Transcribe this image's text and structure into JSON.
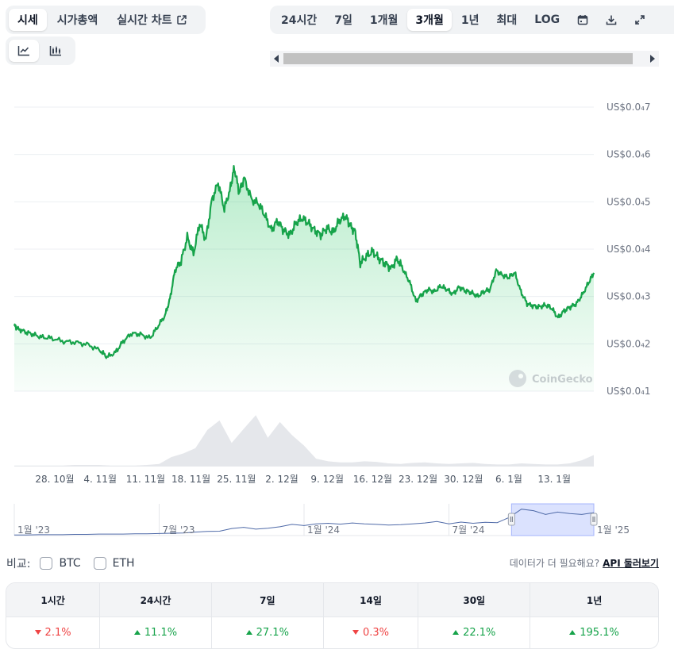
{
  "tabs": [
    {
      "label": "시세",
      "active": true
    },
    {
      "label": "시가총액",
      "active": false
    },
    {
      "label": "실시간 차트",
      "active": false
    }
  ],
  "chart_type_icons": [
    "line-chart-icon",
    "candlestick-chart-icon"
  ],
  "ranges": [
    {
      "label": "24시간",
      "active": false
    },
    {
      "label": "7일",
      "active": false
    },
    {
      "label": "1개월",
      "active": false
    },
    {
      "label": "3개월",
      "active": true
    },
    {
      "label": "1년",
      "active": false
    },
    {
      "label": "최대",
      "active": false
    },
    {
      "label": "LOG",
      "active": false
    }
  ],
  "toolbar_icons": [
    "calendar-icon",
    "download-icon",
    "expand-icon"
  ],
  "watermark": "CoinGecko",
  "chart_data": {
    "type": "area",
    "y_ticks": [
      {
        "label": "US$0.0₄7",
        "value": 7
      },
      {
        "label": "US$0.0₄6",
        "value": 6
      },
      {
        "label": "US$0.0₄5",
        "value": 5
      },
      {
        "label": "US$0.0₄4",
        "value": 4
      },
      {
        "label": "US$0.0₄3",
        "value": 3
      },
      {
        "label": "US$0.0₄2",
        "value": 2
      },
      {
        "label": "US$0.0₄1",
        "value": 1
      }
    ],
    "ylim": [
      1,
      7
    ],
    "x_ticks": [
      "28. 10월",
      "4. 11월",
      "11. 11월",
      "18. 11월",
      "25. 11월",
      "2. 12월",
      "9. 12월",
      "16. 12월",
      "23. 12월",
      "30. 12월",
      "6. 1월",
      "13. 1월"
    ],
    "price_series": [
      {
        "x": 0,
        "y": 2.38
      },
      {
        "x": 0.3,
        "y": 2.32
      },
      {
        "x": 0.9,
        "y": 2.25
      },
      {
        "x": 1.5,
        "y": 2.2
      },
      {
        "x": 2.2,
        "y": 2.14
      },
      {
        "x": 3.0,
        "y": 2.12
      },
      {
        "x": 4.0,
        "y": 2.05
      },
      {
        "x": 5.0,
        "y": 2.03
      },
      {
        "x": 6.0,
        "y": 1.98
      },
      {
        "x": 7.0,
        "y": 1.85
      },
      {
        "x": 7.5,
        "y": 1.72
      },
      {
        "x": 8.2,
        "y": 1.82
      },
      {
        "x": 8.8,
        "y": 2.05
      },
      {
        "x": 9.5,
        "y": 2.22
      },
      {
        "x": 10.2,
        "y": 2.2
      },
      {
        "x": 11.0,
        "y": 2.12
      },
      {
        "x": 11.6,
        "y": 2.36
      },
      {
        "x": 12.2,
        "y": 2.6
      },
      {
        "x": 12.6,
        "y": 2.95
      },
      {
        "x": 13.0,
        "y": 3.55
      },
      {
        "x": 13.5,
        "y": 3.75
      },
      {
        "x": 14.0,
        "y": 4.25
      },
      {
        "x": 14.5,
        "y": 3.9
      },
      {
        "x": 15.0,
        "y": 4.55
      },
      {
        "x": 15.5,
        "y": 4.2
      },
      {
        "x": 16.0,
        "y": 5.05
      },
      {
        "x": 16.5,
        "y": 5.4
      },
      {
        "x": 17.0,
        "y": 4.85
      },
      {
        "x": 17.5,
        "y": 5.3
      },
      {
        "x": 17.8,
        "y": 5.72
      },
      {
        "x": 18.2,
        "y": 5.2
      },
      {
        "x": 18.6,
        "y": 5.5
      },
      {
        "x": 19.2,
        "y": 5.05
      },
      {
        "x": 19.8,
        "y": 4.95
      },
      {
        "x": 20.3,
        "y": 4.7
      },
      {
        "x": 20.8,
        "y": 4.4
      },
      {
        "x": 21.3,
        "y": 4.6
      },
      {
        "x": 21.8,
        "y": 4.4
      },
      {
        "x": 22.3,
        "y": 4.3
      },
      {
        "x": 22.8,
        "y": 4.55
      },
      {
        "x": 23.3,
        "y": 4.65
      },
      {
        "x": 23.8,
        "y": 4.55
      },
      {
        "x": 24.3,
        "y": 4.4
      },
      {
        "x": 24.8,
        "y": 4.3
      },
      {
        "x": 25.3,
        "y": 4.45
      },
      {
        "x": 25.8,
        "y": 4.35
      },
      {
        "x": 26.3,
        "y": 4.6
      },
      {
        "x": 26.8,
        "y": 4.7
      },
      {
        "x": 27.2,
        "y": 4.5
      },
      {
        "x": 27.6,
        "y": 4.35
      },
      {
        "x": 28.0,
        "y": 3.7
      },
      {
        "x": 28.5,
        "y": 3.85
      },
      {
        "x": 29.0,
        "y": 3.95
      },
      {
        "x": 29.5,
        "y": 3.8
      },
      {
        "x": 30.0,
        "y": 3.7
      },
      {
        "x": 30.5,
        "y": 3.6
      },
      {
        "x": 31.0,
        "y": 3.8
      },
      {
        "x": 31.5,
        "y": 3.55
      },
      {
        "x": 32.0,
        "y": 3.3
      },
      {
        "x": 32.5,
        "y": 2.9
      },
      {
        "x": 33.0,
        "y": 3.05
      },
      {
        "x": 33.5,
        "y": 3.15
      },
      {
        "x": 34.0,
        "y": 3.1
      },
      {
        "x": 34.5,
        "y": 3.22
      },
      {
        "x": 35.0,
        "y": 3.15
      },
      {
        "x": 35.5,
        "y": 3.05
      },
      {
        "x": 36.0,
        "y": 3.2
      },
      {
        "x": 36.5,
        "y": 3.12
      },
      {
        "x": 37.0,
        "y": 3.08
      },
      {
        "x": 37.5,
        "y": 3.0
      },
      {
        "x": 38.0,
        "y": 3.1
      },
      {
        "x": 38.5,
        "y": 3.15
      },
      {
        "x": 39.0,
        "y": 3.55
      },
      {
        "x": 39.5,
        "y": 3.45
      },
      {
        "x": 40.0,
        "y": 3.4
      },
      {
        "x": 40.5,
        "y": 3.5
      },
      {
        "x": 41.0,
        "y": 3.1
      },
      {
        "x": 41.5,
        "y": 2.85
      },
      {
        "x": 42.0,
        "y": 2.8
      },
      {
        "x": 42.5,
        "y": 2.78
      },
      {
        "x": 43.0,
        "y": 2.82
      },
      {
        "x": 43.5,
        "y": 2.75
      },
      {
        "x": 44.0,
        "y": 2.55
      },
      {
        "x": 44.5,
        "y": 2.7
      },
      {
        "x": 45.0,
        "y": 2.78
      },
      {
        "x": 45.5,
        "y": 2.85
      },
      {
        "x": 46.0,
        "y": 3.05
      },
      {
        "x": 46.5,
        "y": 3.3
      },
      {
        "x": 46.9,
        "y": 3.5
      }
    ],
    "volume_series": [
      0.02,
      0.02,
      0.02,
      0.02,
      0.02,
      0.03,
      0.03,
      0.03,
      0.02,
      0.02,
      0.02,
      0.03,
      0.05,
      0.18,
      0.25,
      0.35,
      0.7,
      0.88,
      0.45,
      0.72,
      0.98,
      0.55,
      0.85,
      0.6,
      0.4,
      0.15,
      0.1,
      0.08,
      0.08,
      0.1,
      0.09,
      0.06,
      0.05,
      0.07,
      0.08,
      0.06,
      0.05,
      0.06,
      0.07,
      0.05,
      0.04,
      0.04,
      0.06,
      0.05,
      0.04,
      0.04,
      0.06,
      0.12,
      0.22
    ],
    "line_color": "#16a34a"
  },
  "overview": {
    "labels": [
      "1월 '23",
      "7월 '23",
      "1월 '24",
      "7월 '24",
      "1월 '25"
    ],
    "series": [
      0.02,
      0.02,
      0.03,
      0.03,
      0.03,
      0.04,
      0.04,
      0.05,
      0.05,
      0.05,
      0.06,
      0.06,
      0.07,
      0.08,
      0.09,
      0.12,
      0.14,
      0.15,
      0.24,
      0.28,
      0.22,
      0.25,
      0.3,
      0.38,
      0.34,
      0.4,
      0.42,
      0.39,
      0.43,
      0.4,
      0.38,
      0.36,
      0.37,
      0.4,
      0.43,
      0.48,
      0.4,
      0.46,
      0.42,
      0.45,
      0.44,
      0.62,
      0.9,
      0.85,
      0.72,
      0.8,
      0.75,
      0.72,
      0.78
    ],
    "selection_from": 0.858,
    "selection_to": 1.0
  },
  "compare": {
    "label": "비교:",
    "options": [
      "BTC",
      "ETH"
    ]
  },
  "api": {
    "text": "데이터가 더 필요해요?",
    "link": "API 둘러보기"
  },
  "performance": [
    {
      "period": "1시간",
      "value": "2.1%",
      "dir": "down"
    },
    {
      "period": "24시간",
      "value": "11.1%",
      "dir": "up"
    },
    {
      "period": "7일",
      "value": "27.1%",
      "dir": "up"
    },
    {
      "period": "14일",
      "value": "0.3%",
      "dir": "down"
    },
    {
      "period": "30일",
      "value": "22.1%",
      "dir": "up"
    },
    {
      "period": "1년",
      "value": "195.1%",
      "dir": "up"
    }
  ]
}
